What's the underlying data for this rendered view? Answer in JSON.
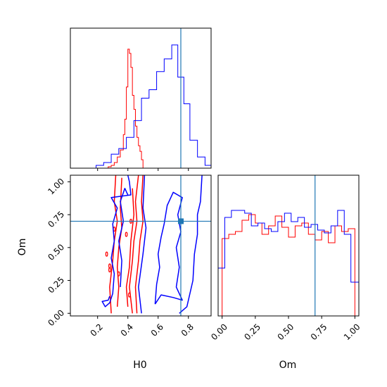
{
  "chart_data": {
    "type": "corner",
    "parameters": [
      "H0",
      "Om"
    ],
    "truth": {
      "H0": 0.75,
      "Om": 0.7
    },
    "colors": {
      "series_a": "#ff0000",
      "series_b": "#0000ff",
      "truth": "#1f77b4"
    },
    "panels": [
      {
        "id": "hist-H0",
        "type": "histogram",
        "xlim": [
          0.02,
          0.95
        ],
        "x_ticks_labeled": false,
        "series": [
          {
            "color": "#ff0000",
            "edges": [
              0.27,
              0.29,
              0.31,
              0.33,
              0.35,
              0.37,
              0.38,
              0.39,
              0.4,
              0.41,
              0.42,
              0.43,
              0.44,
              0.45,
              0.46,
              0.47,
              0.48,
              0.49,
              0.5,
              0.51
            ],
            "values": [
              0.01,
              0.02,
              0.04,
              0.08,
              0.13,
              0.24,
              0.35,
              0.58,
              0.85,
              0.82,
              0.72,
              0.52,
              0.42,
              0.3,
              0.22,
              0.16,
              0.12,
              0.06,
              0.0
            ]
          },
          {
            "color": "#0000ff",
            "edges": [
              0.19,
              0.24,
              0.29,
              0.34,
              0.39,
              0.44,
              0.49,
              0.54,
              0.59,
              0.64,
              0.69,
              0.73,
              0.77,
              0.81,
              0.86,
              0.91,
              0.95
            ],
            "values": [
              0.02,
              0.04,
              0.1,
              0.14,
              0.22,
              0.34,
              0.5,
              0.56,
              0.69,
              0.78,
              0.88,
              0.65,
              0.46,
              0.2,
              0.08,
              0.02
            ]
          }
        ]
      },
      {
        "id": "contour-H0-Om",
        "type": "contour",
        "xlim": [
          0.02,
          0.95
        ],
        "ylim": [
          -0.02,
          1.05
        ],
        "xticks": [
          "0.2",
          "0.4",
          "0.6",
          "0.8"
        ],
        "yticks": [
          "0.00",
          "0.25",
          "0.50",
          "0.75",
          "1.00"
        ],
        "xlabel": "H0",
        "ylabel": "Om",
        "series": [
          {
            "color": "#ff0000",
            "levels": [
              [
                [
                  0.29,
                  0.0
                ],
                [
                  0.28,
                  0.2
                ],
                [
                  0.3,
                  0.4
                ],
                [
                  0.31,
                  0.55
                ],
                [
                  0.33,
                  0.7
                ],
                [
                  0.31,
                  0.85
                ],
                [
                  0.32,
                  1.05
                ]
              ],
              [
                [
                  0.43,
                  0.0
                ],
                [
                  0.41,
                  0.2
                ],
                [
                  0.43,
                  0.4
                ],
                [
                  0.44,
                  0.55
                ],
                [
                  0.46,
                  0.7
                ],
                [
                  0.45,
                  0.85
                ],
                [
                  0.47,
                  1.05
                ]
              ],
              [
                [
                  0.46,
                  0.0
                ],
                [
                  0.45,
                  0.2
                ],
                [
                  0.47,
                  0.4
                ],
                [
                  0.48,
                  0.55
                ],
                [
                  0.5,
                  0.7
                ],
                [
                  0.49,
                  0.85
                ],
                [
                  0.5,
                  1.05
                ]
              ],
              [
                [
                  0.33,
                  0.05
                ],
                [
                  0.34,
                  0.2
                ],
                [
                  0.33,
                  0.35
                ],
                [
                  0.34,
                  0.5
                ],
                [
                  0.36,
                  0.65
                ],
                [
                  0.35,
                  0.8
                ],
                [
                  0.36,
                  1.03
                ]
              ],
              [
                [
                  0.4,
                  0.05
                ],
                [
                  0.39,
                  0.2
                ],
                [
                  0.41,
                  0.35
                ],
                [
                  0.42,
                  0.55
                ],
                [
                  0.44,
                  0.75
                ],
                [
                  0.43,
                  0.95
                ]
              ]
            ],
            "islands": [
              [
                0.28,
                0.33
              ],
              [
                0.28,
                0.36
              ],
              [
                0.26,
                0.45
              ],
              [
                0.34,
                0.3
              ],
              [
                0.39,
                0.6
              ],
              [
                0.42,
                0.7
              ],
              [
                0.41,
                0.14
              ],
              [
                0.31,
                0.64
              ]
            ]
          },
          {
            "color": "#0000ff",
            "levels": [
              [
                [
                  0.28,
                  0.13
                ],
                [
                  0.27,
                  0.1
                ],
                [
                  0.23,
                  0.09
                ],
                [
                  0.25,
                  0.05
                ],
                [
                  0.28,
                  0.08
                ],
                [
                  0.3,
                  0.15
                ],
                [
                  0.31,
                  0.3
                ],
                [
                  0.29,
                  0.42
                ],
                [
                  0.31,
                  0.55
                ],
                [
                  0.3,
                  0.68
                ],
                [
                  0.33,
                  0.8
                ],
                [
                  0.29,
                  0.88
                ],
                [
                  0.42,
                  0.9
                ],
                [
                  0.41,
                  1.0
                ],
                [
                  0.4,
                  1.05
                ]
              ],
              [
                [
                  0.74,
                  0.0
                ],
                [
                  0.79,
                  0.05
                ],
                [
                  0.83,
                  0.25
                ],
                [
                  0.84,
                  0.45
                ],
                [
                  0.86,
                  0.6
                ],
                [
                  0.86,
                  0.75
                ],
                [
                  0.88,
                  0.85
                ],
                [
                  0.89,
                  1.05
                ]
              ],
              [
                [
                  0.58,
                  0.07
                ],
                [
                  0.62,
                  0.14
                ],
                [
                  0.7,
                  0.12
                ],
                [
                  0.76,
                  0.1
                ],
                [
                  0.72,
                  0.2
                ],
                [
                  0.74,
                  0.35
                ],
                [
                  0.72,
                  0.5
                ],
                [
                  0.75,
                  0.62
                ],
                [
                  0.73,
                  0.75
                ],
                [
                  0.76,
                  0.88
                ],
                [
                  0.7,
                  0.92
                ],
                [
                  0.66,
                  0.82
                ],
                [
                  0.64,
                  0.68
                ],
                [
                  0.62,
                  0.58
                ],
                [
                  0.6,
                  0.45
                ],
                [
                  0.61,
                  0.35
                ],
                [
                  0.59,
                  0.22
                ],
                [
                  0.58,
                  0.07
                ]
              ],
              [
                [
                  0.49,
                  0.0
                ],
                [
                  0.47,
                  0.2
                ],
                [
                  0.5,
                  0.45
                ],
                [
                  0.52,
                  0.65
                ],
                [
                  0.5,
                  0.8
                ],
                [
                  0.51,
                  1.05
                ]
              ],
              [
                [
                  0.35,
                  0.2
                ],
                [
                  0.36,
                  0.4
                ],
                [
                  0.34,
                  0.55
                ],
                [
                  0.37,
                  0.7
                ],
                [
                  0.35,
                  0.85
                ],
                [
                  0.38,
                  0.95
                ],
                [
                  0.4,
                  0.9
                ]
              ]
            ]
          }
        ]
      },
      {
        "id": "hist-Om",
        "type": "histogram",
        "xlim": [
          -0.03,
          1.03
        ],
        "xticks": [
          "0.00",
          "0.25",
          "0.50",
          "0.75",
          "1.00"
        ],
        "xlabel": "Om",
        "series": [
          {
            "color": "#ff0000",
            "edges": [
              0.0,
              0.05,
              0.1,
              0.15,
              0.2,
              0.25,
              0.3,
              0.35,
              0.4,
              0.45,
              0.5,
              0.55,
              0.6,
              0.65,
              0.7,
              0.75,
              0.8,
              0.85,
              0.9,
              0.95,
              1.0
            ],
            "values": [
              0.55,
              0.58,
              0.6,
              0.68,
              0.72,
              0.66,
              0.58,
              0.64,
              0.71,
              0.63,
              0.56,
              0.64,
              0.66,
              0.58,
              0.54,
              0.6,
              0.52,
              0.64,
              0.6,
              0.62
            ]
          },
          {
            "color": "#0000ff",
            "edges": [
              -0.03,
              0.02,
              0.07,
              0.12,
              0.17,
              0.22,
              0.27,
              0.32,
              0.37,
              0.42,
              0.47,
              0.52,
              0.57,
              0.62,
              0.67,
              0.72,
              0.77,
              0.82,
              0.87,
              0.92,
              0.97,
              1.03
            ],
            "values": [
              0.34,
              0.7,
              0.75,
              0.75,
              0.73,
              0.64,
              0.66,
              0.62,
              0.6,
              0.67,
              0.73,
              0.67,
              0.7,
              0.63,
              0.65,
              0.61,
              0.59,
              0.64,
              0.75,
              0.58,
              0.24
            ]
          }
        ]
      }
    ]
  }
}
